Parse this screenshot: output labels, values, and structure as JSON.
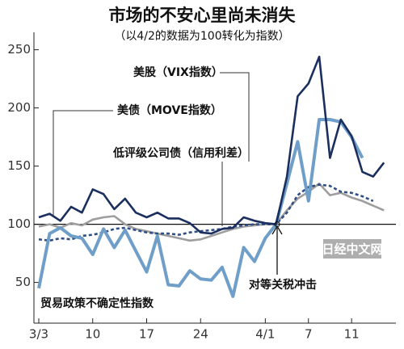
{
  "chart_data": {
    "type": "line",
    "title": "市场的不安心里尚未消失",
    "subtitle": "（以4/2的数据为100转化为指数）",
    "categories": [
      "3/3",
      null,
      null,
      null,
      null,
      "10",
      null,
      null,
      null,
      null,
      "17",
      null,
      null,
      null,
      null,
      "24",
      null,
      null,
      null,
      null,
      null,
      "4/1",
      null,
      null,
      null,
      "7",
      null,
      null,
      null,
      "11",
      null,
      null,
      null
    ],
    "ylim": [
      15,
      265
    ],
    "yticks": [
      50,
      100,
      150,
      200,
      250
    ],
    "baseline": 100,
    "series": [
      {
        "name": "美股（VIX指数）",
        "color": "#1b2f5e",
        "dashed": false,
        "values": [
          106,
          109,
          103,
          115,
          110,
          130,
          126,
          113,
          122,
          110,
          106,
          110,
          105,
          105,
          101,
          93,
          92,
          96,
          97,
          106,
          103,
          101,
          100,
          141,
          210,
          221,
          244,
          157,
          190,
          176,
          145,
          141,
          153
        ]
      },
      {
        "name": "美债（MOVE指数）",
        "color": "#9e9e9e",
        "dashed": false,
        "values": [
          98,
          100,
          97,
          101,
          99,
          104,
          106,
          107,
          100,
          96,
          94,
          92,
          90,
          88,
          86,
          87,
          90,
          93,
          96,
          98,
          99,
          100,
          100,
          112,
          122,
          128,
          135,
          125,
          127,
          123,
          120,
          116,
          112
        ]
      },
      {
        "name": "低评级公司债（信用利差）",
        "color": "#2f4f86",
        "dashed": true,
        "values": [
          87,
          86,
          88,
          87,
          90,
          91,
          93,
          96,
          97,
          95,
          93,
          92,
          92,
          91,
          93,
          94,
          95,
          96,
          98,
          99,
          100,
          100,
          100,
          110,
          125,
          132,
          134,
          133,
          128,
          127,
          124,
          120,
          null
        ]
      },
      {
        "name": "贸易政策不确定性指数",
        "color": "#6f9fc9",
        "dashed": false,
        "values": [
          45,
          92,
          97,
          90,
          88,
          74,
          96,
          80,
          95,
          77,
          59,
          90,
          48,
          47,
          60,
          53,
          52,
          63,
          38,
          80,
          68,
          88,
          100,
          135,
          171,
          120,
          190,
          190,
          188,
          175,
          157,
          null,
          null
        ]
      }
    ],
    "annotation": "对等关税冲击",
    "watermark": "日经中文网"
  }
}
